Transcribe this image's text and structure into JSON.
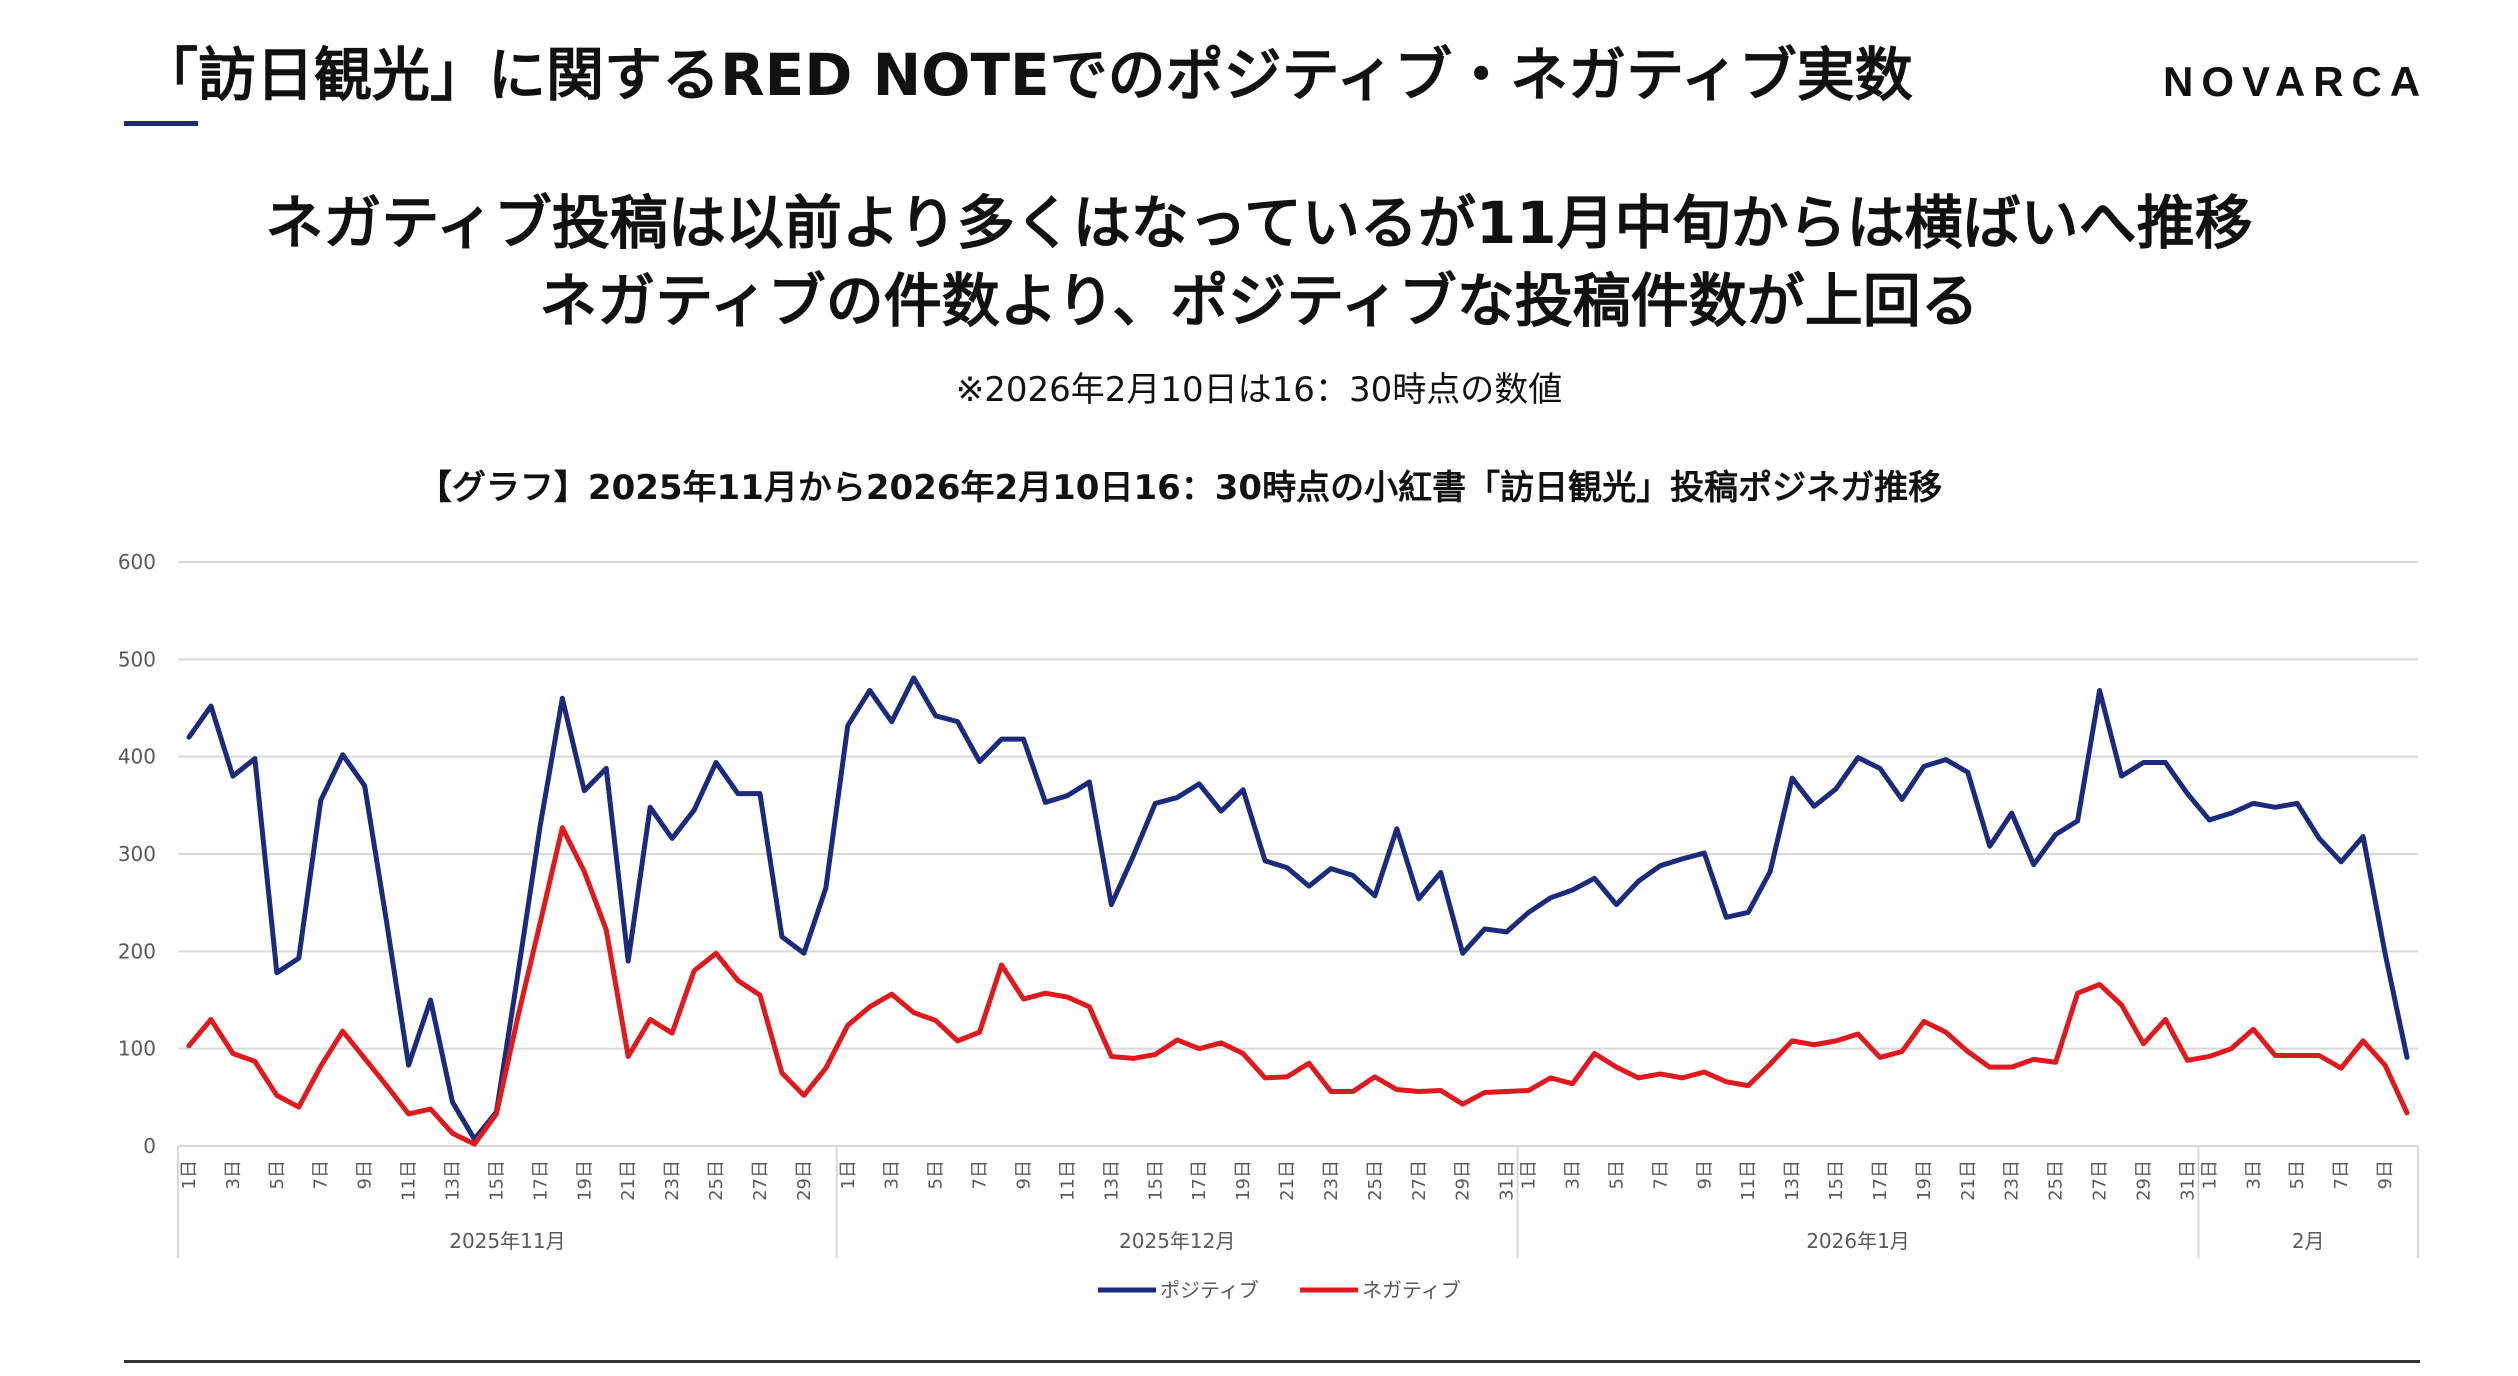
{
  "header": {
    "title": "「訪日観光」に関するRED NOTEでのポジティブ・ネガティブ実数",
    "logo": "NOVARCA"
  },
  "headline": {
    "line1": "ネガティブ投稿は以前より多くはなっているが11月中旬からは横ばいへ推移",
    "line2": "ネガティブの件数より、ポジティブな投稿件数が上回る"
  },
  "note": "※2026年2月10日は16：30時点の数値",
  "colors": {
    "positive": "#1b2a7a",
    "negative": "#e0191e",
    "grid": "#d9d9d9",
    "axis_text": "#595959"
  },
  "chart_data": {
    "type": "line",
    "title": "【グラフ】2025年11月から2026年2月10日16：30時点の小紅書「訪日観光」投稿ポジネガ推移",
    "ylim": [
      0,
      600
    ],
    "yticks": [
      0,
      100,
      200,
      300,
      400,
      500,
      600
    ],
    "grid": true,
    "legend": "bottom-center",
    "months": [
      {
        "label": "2025年11月",
        "days": 30
      },
      {
        "label": "2025年12月",
        "days": 31
      },
      {
        "label": "2026年1月",
        "days": 31
      },
      {
        "label": "2月",
        "days": 10
      }
    ],
    "series": [
      {
        "name": "ポジティブ",
        "color": "#1b2a7a",
        "values": [
          420,
          452,
          380,
          398,
          178,
          193,
          355,
          402,
          370,
          230,
          83,
          150,
          45,
          7,
          35,
          180,
          330,
          460,
          365,
          388,
          190,
          348,
          316,
          345,
          394,
          362,
          362,
          215,
          198,
          265,
          432,
          468,
          436,
          481,
          442,
          436,
          395,
          418,
          418,
          353,
          360,
          374,
          248,
          298,
          352,
          358,
          372,
          344,
          366,
          293,
          286,
          267,
          285,
          278,
          257,
          326,
          254,
          281,
          198,
          223,
          220,
          240,
          255,
          263,
          275,
          248,
          272,
          288,
          295,
          301,
          235,
          240,
          282,
          378,
          349,
          367,
          399,
          388,
          356,
          390,
          397,
          384,
          308,
          342,
          289,
          320,
          334,
          468,
          380,
          394,
          394,
          362,
          335,
          342,
          352,
          348,
          352,
          316,
          292,
          318,
          198,
          91
        ]
      },
      {
        "name": "ネガティブ",
        "color": "#e0191e",
        "values": [
          103,
          130,
          95,
          87,
          52,
          40,
          82,
          118,
          90,
          62,
          33,
          38,
          13,
          2,
          33,
          135,
          230,
          327,
          282,
          222,
          92,
          130,
          116,
          180,
          198,
          170,
          155,
          75,
          52,
          80,
          124,
          143,
          156,
          137,
          129,
          108,
          117,
          186,
          151,
          157,
          153,
          143,
          92,
          90,
          94,
          109,
          100,
          106,
          95,
          70,
          71,
          85,
          56,
          56,
          71,
          58,
          56,
          57,
          43,
          55,
          56,
          57,
          70,
          64,
          95,
          81,
          70,
          74,
          70,
          76,
          66,
          62,
          84,
          108,
          104,
          108,
          115,
          91,
          97,
          128,
          117,
          97,
          81,
          81,
          89,
          86,
          157,
          166,
          145,
          105,
          130,
          88,
          92,
          100,
          120,
          93,
          93,
          93,
          80,
          108,
          83,
          34
        ]
      }
    ]
  }
}
